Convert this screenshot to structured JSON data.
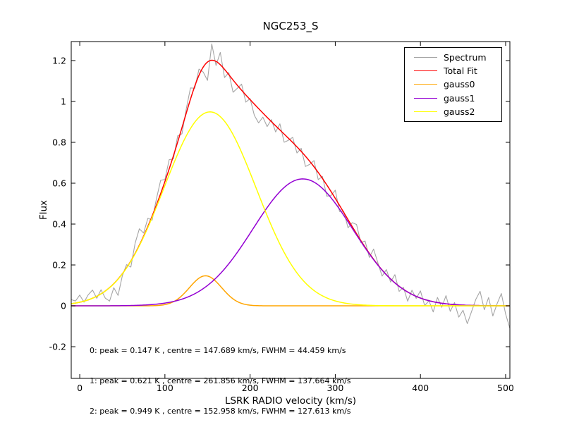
{
  "window_title": "NGC253_S",
  "chart_data": {
    "type": "line",
    "title": "NGC253_S",
    "xlabel": "LSRK RADIO velocity (km/s)",
    "ylabel": "Flux",
    "xlim": [
      -10,
      505
    ],
    "ylim": [
      -0.355,
      1.293
    ],
    "xticks": [
      0,
      100,
      200,
      300,
      400,
      500
    ],
    "xtick_labels": [
      "0",
      "100",
      "200",
      "300",
      "400",
      "500"
    ],
    "yticks": [
      -0.2,
      0,
      0.2,
      0.4,
      0.6,
      0.8,
      1,
      1.2
    ],
    "ytick_labels": [
      "-0.2",
      "0",
      "0.2",
      "0.4",
      "0.6",
      "0.8",
      "1",
      "1.2"
    ],
    "grid": false,
    "legend_position": "upper right",
    "series": [
      {
        "name": "Spectrum",
        "color": "#a5a5a5",
        "role": "spectrum"
      },
      {
        "name": "Total Fit",
        "color": "#ff0000",
        "role": "total_fit"
      },
      {
        "name": "gauss0",
        "color": "#ffa500",
        "role": "component",
        "peak": 0.147,
        "centre": 147.689,
        "fwhm": 44.459
      },
      {
        "name": "gauss1",
        "color": "#9400d3",
        "role": "component",
        "peak": 0.621,
        "centre": 261.856,
        "fwhm": 137.664
      },
      {
        "name": "gauss2",
        "color": "#ffff00",
        "role": "component",
        "peak": 0.949,
        "centre": 152.958,
        "fwhm": 127.613
      }
    ],
    "spectrum_sampling": {
      "x_start": -10,
      "x_step": 5,
      "note": "spectrum y = sum of gaussian components + noise_offsets",
      "noise_offsets": [
        0.02,
        0.01,
        0.035,
        -0.005,
        0.025,
        0.04,
        -0.01,
        0.02,
        -0.035,
        -0.066,
        -0.02,
        -0.08,
        -0.01,
        0.015,
        -0.03,
        0.05,
        0.08,
        0.015,
        0.04,
        -0.02,
        0.03,
        0.065,
        0.01,
        0.045,
        -0.015,
        0.03,
        -0.03,
        0.02,
        0.055,
        -0.01,
        0.03,
        -0.025,
        -0.09,
        0.08,
        -0.02,
        0.06,
        -0.04,
        0.01,
        -0.06,
        -0.015,
        0.03,
        -0.035,
        0.005,
        -0.055,
        -0.07,
        -0.02,
        -0.045,
        0.01,
        -0.03,
        0.03,
        -0.04,
        -0.01,
        0.025,
        -0.03,
        0.015,
        -0.05,
        -0.015,
        0.03,
        -0.035,
        0.01,
        -0.055,
        -0.02,
        0.04,
        -0.03,
        0.005,
        -0.04,
        0.02,
        0.045,
        -0.01,
        0.03,
        -0.02,
        0.05,
        0.01,
        -0.03,
        0.025,
        -0.015,
        0.04,
        -0.025,
        0.01,
        -0.045,
        0.02,
        -0.01,
        0.035,
        -0.03,
        0.0,
        -0.05,
        0.025,
        -0.02,
        0.04,
        -0.035,
        0.01,
        -0.06,
        -0.025,
        -0.09,
        -0.03,
        0.03,
        0.07,
        -0.02,
        0.04,
        -0.05,
        0.01,
        0.06,
        -0.04,
        -0.11
      ]
    },
    "annotation": {
      "lines": [
        "0: peak = 0.147 K , centre = 147.689 km/s, FWHM = 44.459 km/s",
        "1: peak = 0.621 K , centre = 261.856 km/s, FWHM = 137.664 km/s",
        "2: peak = 0.949 K , centre = 152.958 km/s, FWHM = 127.613 km/s"
      ]
    }
  }
}
